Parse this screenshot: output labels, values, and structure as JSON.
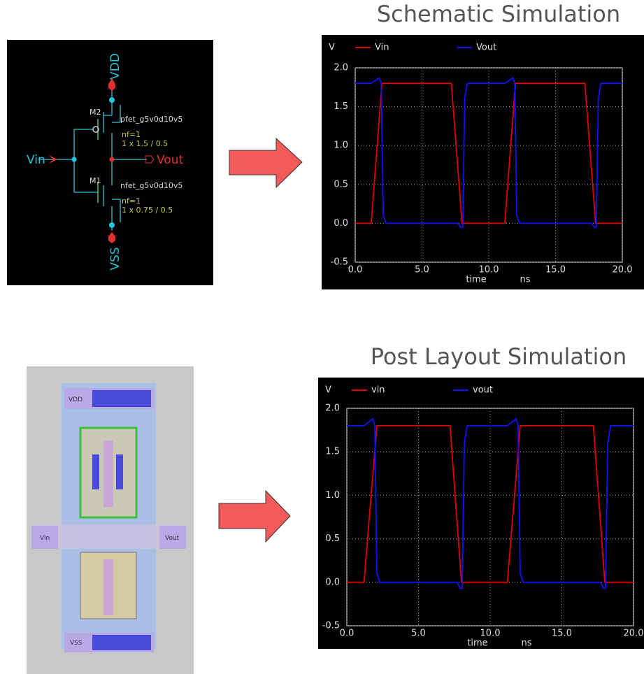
{
  "chart_data": [
    {
      "type": "line",
      "title": "Schematic Simulation",
      "ylabel": "V",
      "xlabel": "time",
      "xunit": "ns",
      "xlim": [
        0,
        20
      ],
      "ylim": [
        -0.5,
        2.0
      ],
      "grid": true,
      "xticks": [
        {
          "value": 0,
          "label": "0.0"
        },
        {
          "value": 5,
          "label": "5.0"
        },
        {
          "value": 10,
          "label": "10.0"
        },
        {
          "value": 15,
          "label": "15.0"
        },
        {
          "value": 20,
          "label": "20.0"
        }
      ],
      "yticks": [
        {
          "value": -0.5,
          "label": "-0.5"
        },
        {
          "value": 0,
          "label": "0.0"
        },
        {
          "value": 0.5,
          "label": "0.5"
        },
        {
          "value": 1,
          "label": "1.0"
        },
        {
          "value": 1.5,
          "label": "1.5"
        },
        {
          "value": 2,
          "label": "2.0"
        }
      ],
      "series": [
        {
          "name": "Vin",
          "color": "#e00000",
          "x": [
            0,
            1.2,
            2.0,
            7.2,
            8.0,
            11.2,
            12.0,
            17.2,
            18.0,
            20
          ],
          "values": [
            0,
            0,
            1.8,
            1.8,
            0,
            0,
            1.8,
            1.8,
            0,
            0
          ]
        },
        {
          "name": "Vout",
          "color": "#1010ff",
          "x": [
            0,
            1.2,
            1.8,
            1.95,
            2.1,
            2.3,
            7.7,
            7.9,
            8.05,
            8.2,
            8.4,
            11.2,
            11.8,
            11.95,
            12.1,
            12.3,
            17.7,
            17.9,
            18.05,
            18.2,
            18.4,
            20
          ],
          "values": [
            1.8,
            1.8,
            1.87,
            1.8,
            0.1,
            0,
            0,
            -0.05,
            -0.05,
            1.6,
            1.8,
            1.8,
            1.87,
            1.8,
            0.1,
            0,
            0,
            -0.05,
            -0.05,
            1.6,
            1.8,
            1.8
          ]
        }
      ]
    },
    {
      "type": "line",
      "title": "Post Layout Simulation",
      "ylabel": "V",
      "xlabel": "time",
      "xunit": "ns",
      "xlim": [
        0,
        20
      ],
      "ylim": [
        -0.5,
        2.0
      ],
      "grid": true,
      "xticks": [
        {
          "value": 0,
          "label": "0.0"
        },
        {
          "value": 5,
          "label": "5.0"
        },
        {
          "value": 10,
          "label": "10.0"
        },
        {
          "value": 15,
          "label": "15.0"
        },
        {
          "value": 20,
          "label": "20.0"
        }
      ],
      "yticks": [
        {
          "value": -0.5,
          "label": "-0.5"
        },
        {
          "value": 0,
          "label": "0.0"
        },
        {
          "value": 0.5,
          "label": "0.5"
        },
        {
          "value": 1,
          "label": "1.0"
        },
        {
          "value": 1.5,
          "label": "1.5"
        },
        {
          "value": 2,
          "label": "2.0"
        }
      ],
      "series": [
        {
          "name": "vin",
          "color": "#e00000",
          "x": [
            0,
            1.2,
            2.1,
            7.2,
            8.0,
            11.2,
            12.1,
            17.2,
            18.0,
            20
          ],
          "values": [
            0,
            0,
            1.8,
            1.8,
            0,
            0,
            1.8,
            1.8,
            0,
            0
          ]
        },
        {
          "name": "vout",
          "color": "#1010ff",
          "x": [
            0,
            1.2,
            1.8,
            1.95,
            2.1,
            2.3,
            7.7,
            7.9,
            8.05,
            8.2,
            8.4,
            11.2,
            11.8,
            11.95,
            12.1,
            12.3,
            17.7,
            17.9,
            18.05,
            18.2,
            18.4,
            20
          ],
          "values": [
            1.8,
            1.8,
            1.88,
            1.8,
            0.1,
            0,
            0,
            -0.07,
            -0.07,
            1.6,
            1.8,
            1.8,
            1.88,
            1.8,
            0.1,
            0,
            0,
            -0.07,
            -0.07,
            1.6,
            1.8,
            1.8
          ]
        }
      ]
    }
  ],
  "schematic": {
    "vdd": "VDD",
    "vss": "VSS",
    "vin": "Vin",
    "vout": "Vout",
    "m2": "M2",
    "m1": "M1",
    "pfet": "pfet_g5v0d10v5",
    "pfet_nf": "nf=1",
    "pfet_size": "1 x 1.5 / 0.5",
    "nfet": "nfet_g5v0d10v5",
    "nfet_nf": "nf=1",
    "nfet_size": "1 x 0.75 / 0.5"
  },
  "layout": {
    "vdd": "VDD",
    "vss": "VSS",
    "vin": "Vin",
    "vout": "Vout"
  }
}
